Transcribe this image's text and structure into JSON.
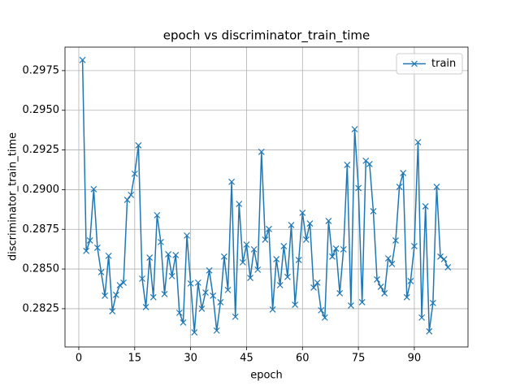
{
  "chart_data": {
    "type": "line",
    "title": "epoch vs discriminator_train_time",
    "x_label": "epoch",
    "y_label": "discriminator_train_time",
    "x": [
      1,
      2,
      3,
      4,
      5,
      6,
      7,
      8,
      9,
      10,
      11,
      12,
      13,
      14,
      15,
      16,
      17,
      18,
      19,
      20,
      21,
      22,
      23,
      24,
      25,
      26,
      27,
      28,
      29,
      30,
      31,
      32,
      33,
      34,
      35,
      36,
      37,
      38,
      39,
      40,
      41,
      42,
      43,
      44,
      45,
      46,
      47,
      48,
      49,
      50,
      51,
      52,
      53,
      54,
      55,
      56,
      57,
      58,
      59,
      60,
      61,
      62,
      63,
      64,
      65,
      66,
      67,
      68,
      69,
      70,
      71,
      72,
      73,
      74,
      75,
      76,
      77,
      78,
      79,
      80,
      81,
      82,
      83,
      84,
      85,
      86,
      87,
      88,
      89,
      90,
      91,
      92,
      93,
      94,
      95,
      96,
      97,
      98,
      99
    ],
    "series": [
      {
        "name": "train",
        "color": "#1f77b4",
        "values": [
          0.29817,
          0.28614,
          0.2868,
          0.29003,
          0.28634,
          0.2848,
          0.28332,
          0.28583,
          0.28234,
          0.28337,
          0.28398,
          0.28414,
          0.28936,
          0.28967,
          0.291,
          0.29279,
          0.28439,
          0.2826,
          0.28572,
          0.28322,
          0.28839,
          0.2867,
          0.28342,
          0.28593,
          0.28455,
          0.28588,
          0.28224,
          0.28163,
          0.28711,
          0.28409,
          0.28101,
          0.28414,
          0.2825,
          0.28352,
          0.28491,
          0.28332,
          0.28112,
          0.28291,
          0.28578,
          0.28368,
          0.29049,
          0.28199,
          0.2891,
          0.28542,
          0.28654,
          0.28444,
          0.28624,
          0.28496,
          0.29238,
          0.28685,
          0.28752,
          0.28245,
          0.28562,
          0.28398,
          0.28644,
          0.2845,
          0.28777,
          0.28275,
          0.28557,
          0.28854,
          0.28685,
          0.28787,
          0.28383,
          0.28414,
          0.2824,
          0.28194,
          0.28803,
          0.28578,
          0.28629,
          0.28347,
          0.28624,
          0.29156,
          0.2827,
          0.29381,
          0.2901,
          0.28291,
          0.29182,
          0.29161,
          0.28864,
          0.28434,
          0.28388,
          0.28347,
          0.28567,
          0.28532,
          0.2868,
          0.29018,
          0.29105,
          0.28322,
          0.28424,
          0.28644,
          0.29299,
          0.28194,
          0.28895,
          0.28107,
          0.28286,
          0.29018,
          0.28578,
          0.28562,
          0.28511
        ]
      }
    ],
    "xlim": [
      -3.7,
      104.4
    ],
    "ylim": [
      0.28009,
      0.29898
    ],
    "xticks": [
      0,
      15,
      30,
      45,
      60,
      75,
      90
    ],
    "yticks": [
      0.2825,
      {
        "value": 0.285,
        "label": "0.2850"
      },
      0.2875,
      {
        "value": 0.29,
        "label": "0.2900"
      },
      0.2925,
      {
        "value": 0.295,
        "label": "0.2950"
      },
      0.2975
    ],
    "grid": true,
    "legend": "upper right",
    "marker": "x"
  }
}
